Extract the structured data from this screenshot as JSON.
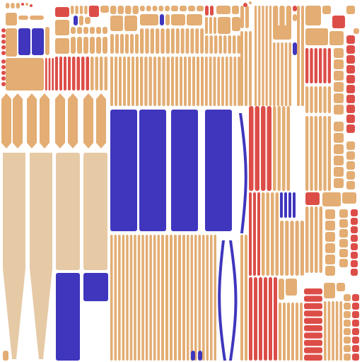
{
  "palette": {
    "tan": "#e3ad74",
    "red": "#dd4d48",
    "blue": "#3f36bd",
    "beige": "#e6caa6",
    "background": "#ffffff"
  }
}
